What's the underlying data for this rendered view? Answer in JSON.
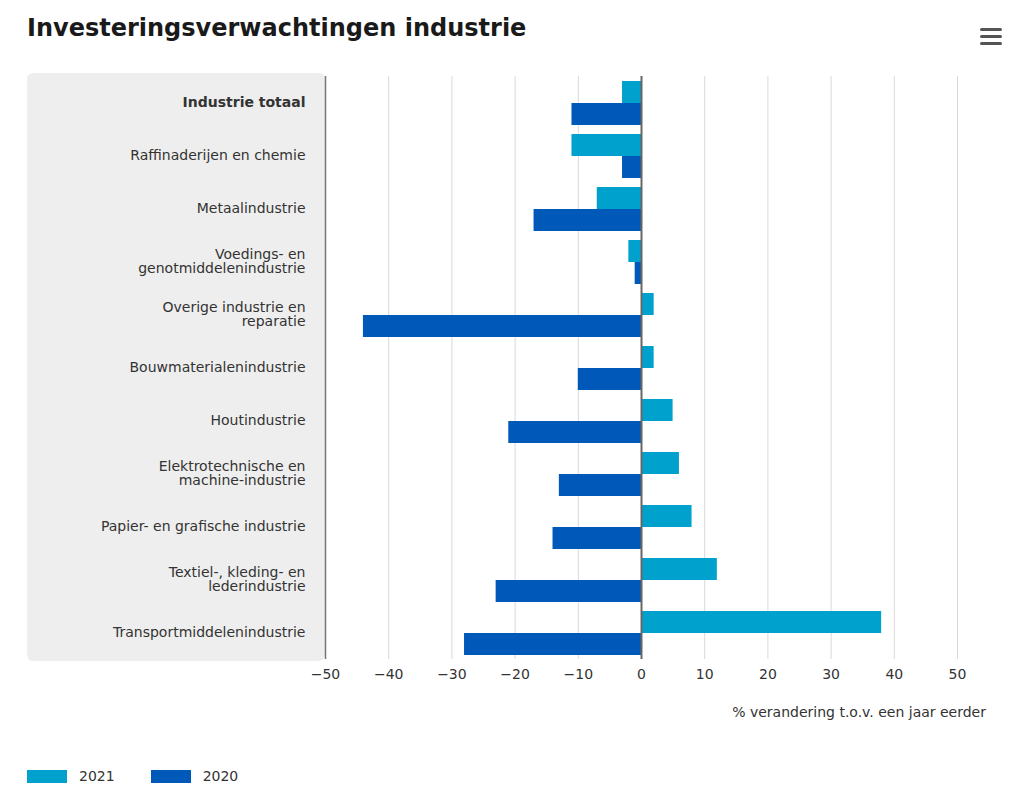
{
  "chart_data": {
    "type": "bar",
    "title": "Investeringsverwachtingen industrie",
    "orientation": "horizontal",
    "categories": [
      "Industrie totaal",
      "Raffinaderijen en chemie",
      "Metaalindustrie",
      "Voedings- en\ngenotmiddelenindustrie",
      "Overige industrie en\nreparatie",
      "Bouwmaterialenindustrie",
      "Houtindustrie",
      "Elektrotechnische en\nmachine-industrie",
      "Papier- en grafische industrie",
      "Textiel-, kleding- en\nlederindustrie",
      "Transportmiddelenindustrie"
    ],
    "series": [
      {
        "name": "2021",
        "color": "#00a1cd",
        "values": [
          -3,
          -11,
          -7,
          -2,
          2,
          2,
          5,
          6,
          8,
          12,
          38
        ]
      },
      {
        "name": "2020",
        "color": "#0058b8",
        "values": [
          -11,
          -3,
          -17,
          -1,
          -44,
          -10,
          -21,
          -13,
          -14,
          -23,
          -28
        ]
      }
    ],
    "xlabel": "% verandering t.o.v. een jaar eerder",
    "xlim": [
      -50,
      50
    ],
    "xticks": [
      -50,
      -40,
      -30,
      -20,
      -10,
      0,
      10,
      20,
      30,
      40,
      50
    ],
    "grid": true,
    "legend": "bottom-left"
  }
}
